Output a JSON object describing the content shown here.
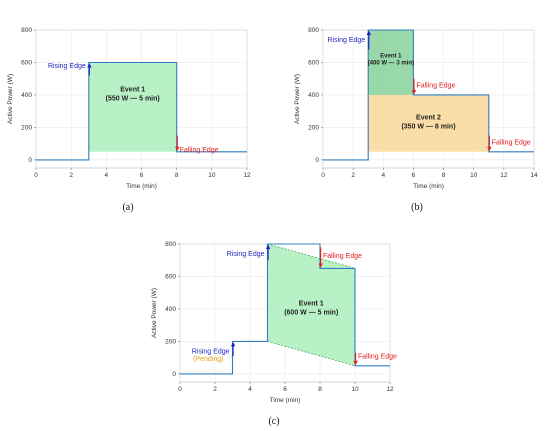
{
  "colors": {
    "power_line": "#2f7fc1",
    "rising": "#1f1fbf",
    "falling": "#e02020",
    "pending": "#e8a317",
    "event_green": "#a8eeb8",
    "event_green_dark": "#7fcf94",
    "event_orange": "#fbdca2"
  },
  "chart_data": [
    {
      "id": "a",
      "type": "line",
      "caption": "(a)",
      "xlabel": "Time (min)",
      "ylabel": "Active Power (W)",
      "xlim": [
        0,
        12
      ],
      "ylim": [
        -50,
        800
      ],
      "xticks": [
        0,
        2,
        4,
        6,
        8,
        10,
        12
      ],
      "yticks": [
        0,
        200,
        400,
        600,
        800
      ],
      "grid": true,
      "series": [
        {
          "x": [
            0,
            3,
            3,
            8,
            8,
            12
          ],
          "y": [
            0,
            0,
            600,
            600,
            50,
            50
          ]
        }
      ],
      "regions": [
        {
          "points": [
            [
              3,
              50
            ],
            [
              3,
              600
            ],
            [
              8,
              600
            ],
            [
              8,
              50
            ]
          ],
          "color": "green",
          "label_lines": [
            "Event 1",
            "(550 W — 5 min)"
          ],
          "label_pos": [
            5.5,
            420
          ]
        }
      ],
      "annotations": [
        {
          "text": "Rising Edge",
          "x": 3,
          "y": 520,
          "y_to": 600,
          "kind": "rising",
          "side": "left",
          "text_y": 580
        },
        {
          "text": "Falling Edge",
          "x": 8,
          "y": 150,
          "y_to": 50,
          "kind": "falling",
          "side": "right",
          "text_y": 65
        }
      ]
    },
    {
      "id": "b",
      "type": "line",
      "caption": "(b)",
      "xlabel": "Time (min)",
      "ylabel": "Active Power (W)",
      "xlim": [
        0,
        14
      ],
      "ylim": [
        -50,
        800
      ],
      "xticks": [
        0,
        2,
        4,
        6,
        8,
        10,
        12,
        14
      ],
      "yticks": [
        0,
        200,
        400,
        600,
        800
      ],
      "grid": true,
      "series": [
        {
          "x": [
            0,
            3,
            3,
            6,
            6,
            11,
            11,
            14
          ],
          "y": [
            0,
            0,
            800,
            800,
            400,
            400,
            50,
            50
          ]
        }
      ],
      "regions": [
        {
          "points": [
            [
              3,
              50
            ],
            [
              3,
              400
            ],
            [
              11,
              400
            ],
            [
              11,
              50
            ]
          ],
          "color": "orange",
          "label_lines": [
            "Event 2",
            "(350 W — 8 min)"
          ],
          "label_pos": [
            7,
            250
          ]
        },
        {
          "points": [
            [
              3,
              400
            ],
            [
              3,
              800
            ],
            [
              6,
              800
            ],
            [
              6,
              400
            ]
          ],
          "color": "green_dark",
          "label_lines": [
            "Event 1",
            "(400 W — 3 min)"
          ],
          "label_pos": [
            4.5,
            630
          ]
        }
      ],
      "annotations": [
        {
          "text": "Rising Edge",
          "x": 3,
          "y": 680,
          "y_to": 800,
          "kind": "rising",
          "side": "left",
          "text_y": 740
        },
        {
          "text": "Falling Edge",
          "x": 6,
          "y": 500,
          "y_to": 400,
          "kind": "falling",
          "side": "right",
          "text_y": 460
        },
        {
          "text": "Falling Edge",
          "x": 11,
          "y": 150,
          "y_to": 50,
          "kind": "falling",
          "side": "right",
          "text_y": 110
        }
      ]
    },
    {
      "id": "c",
      "type": "line",
      "caption": "(c)",
      "xlabel": "Time (min)",
      "ylabel": "Active Power (W)",
      "xlim": [
        0,
        12
      ],
      "ylim": [
        -50,
        800
      ],
      "xticks": [
        0,
        2,
        4,
        6,
        8,
        10,
        12
      ],
      "yticks": [
        0,
        200,
        400,
        600,
        800
      ],
      "grid": true,
      "series": [
        {
          "x": [
            0,
            3,
            3,
            5,
            5,
            8,
            8,
            10,
            10,
            12
          ],
          "y": [
            0,
            0,
            200,
            200,
            800,
            800,
            650,
            650,
            50,
            50
          ]
        }
      ],
      "regions": [
        {
          "points": [
            [
              5,
              200
            ],
            [
              5,
              800
            ],
            [
              10,
              650
            ],
            [
              10,
              50
            ]
          ],
          "color": "green",
          "label_lines": [
            "Event 1",
            "(600 W — 5 min)"
          ],
          "label_pos": [
            7.5,
            420
          ],
          "dashed": true
        }
      ],
      "annotations": [
        {
          "text": "Rising Edge",
          "x": 5,
          "y": 700,
          "y_to": 800,
          "kind": "rising",
          "side": "left",
          "text_y": 740
        },
        {
          "text": "Falling Edge",
          "x": 8,
          "y": 780,
          "y_to": 650,
          "kind": "falling",
          "side": "right",
          "text_y": 730
        },
        {
          "text": "Rising Edge",
          "x": 3,
          "y": 110,
          "y_to": 200,
          "kind": "rising",
          "side": "left",
          "text_y": 140,
          "sub": "(Pending)"
        },
        {
          "text": "Falling Edge",
          "x": 10,
          "y": 130,
          "y_to": 50,
          "kind": "falling",
          "side": "right",
          "text_y": 110
        }
      ]
    }
  ]
}
